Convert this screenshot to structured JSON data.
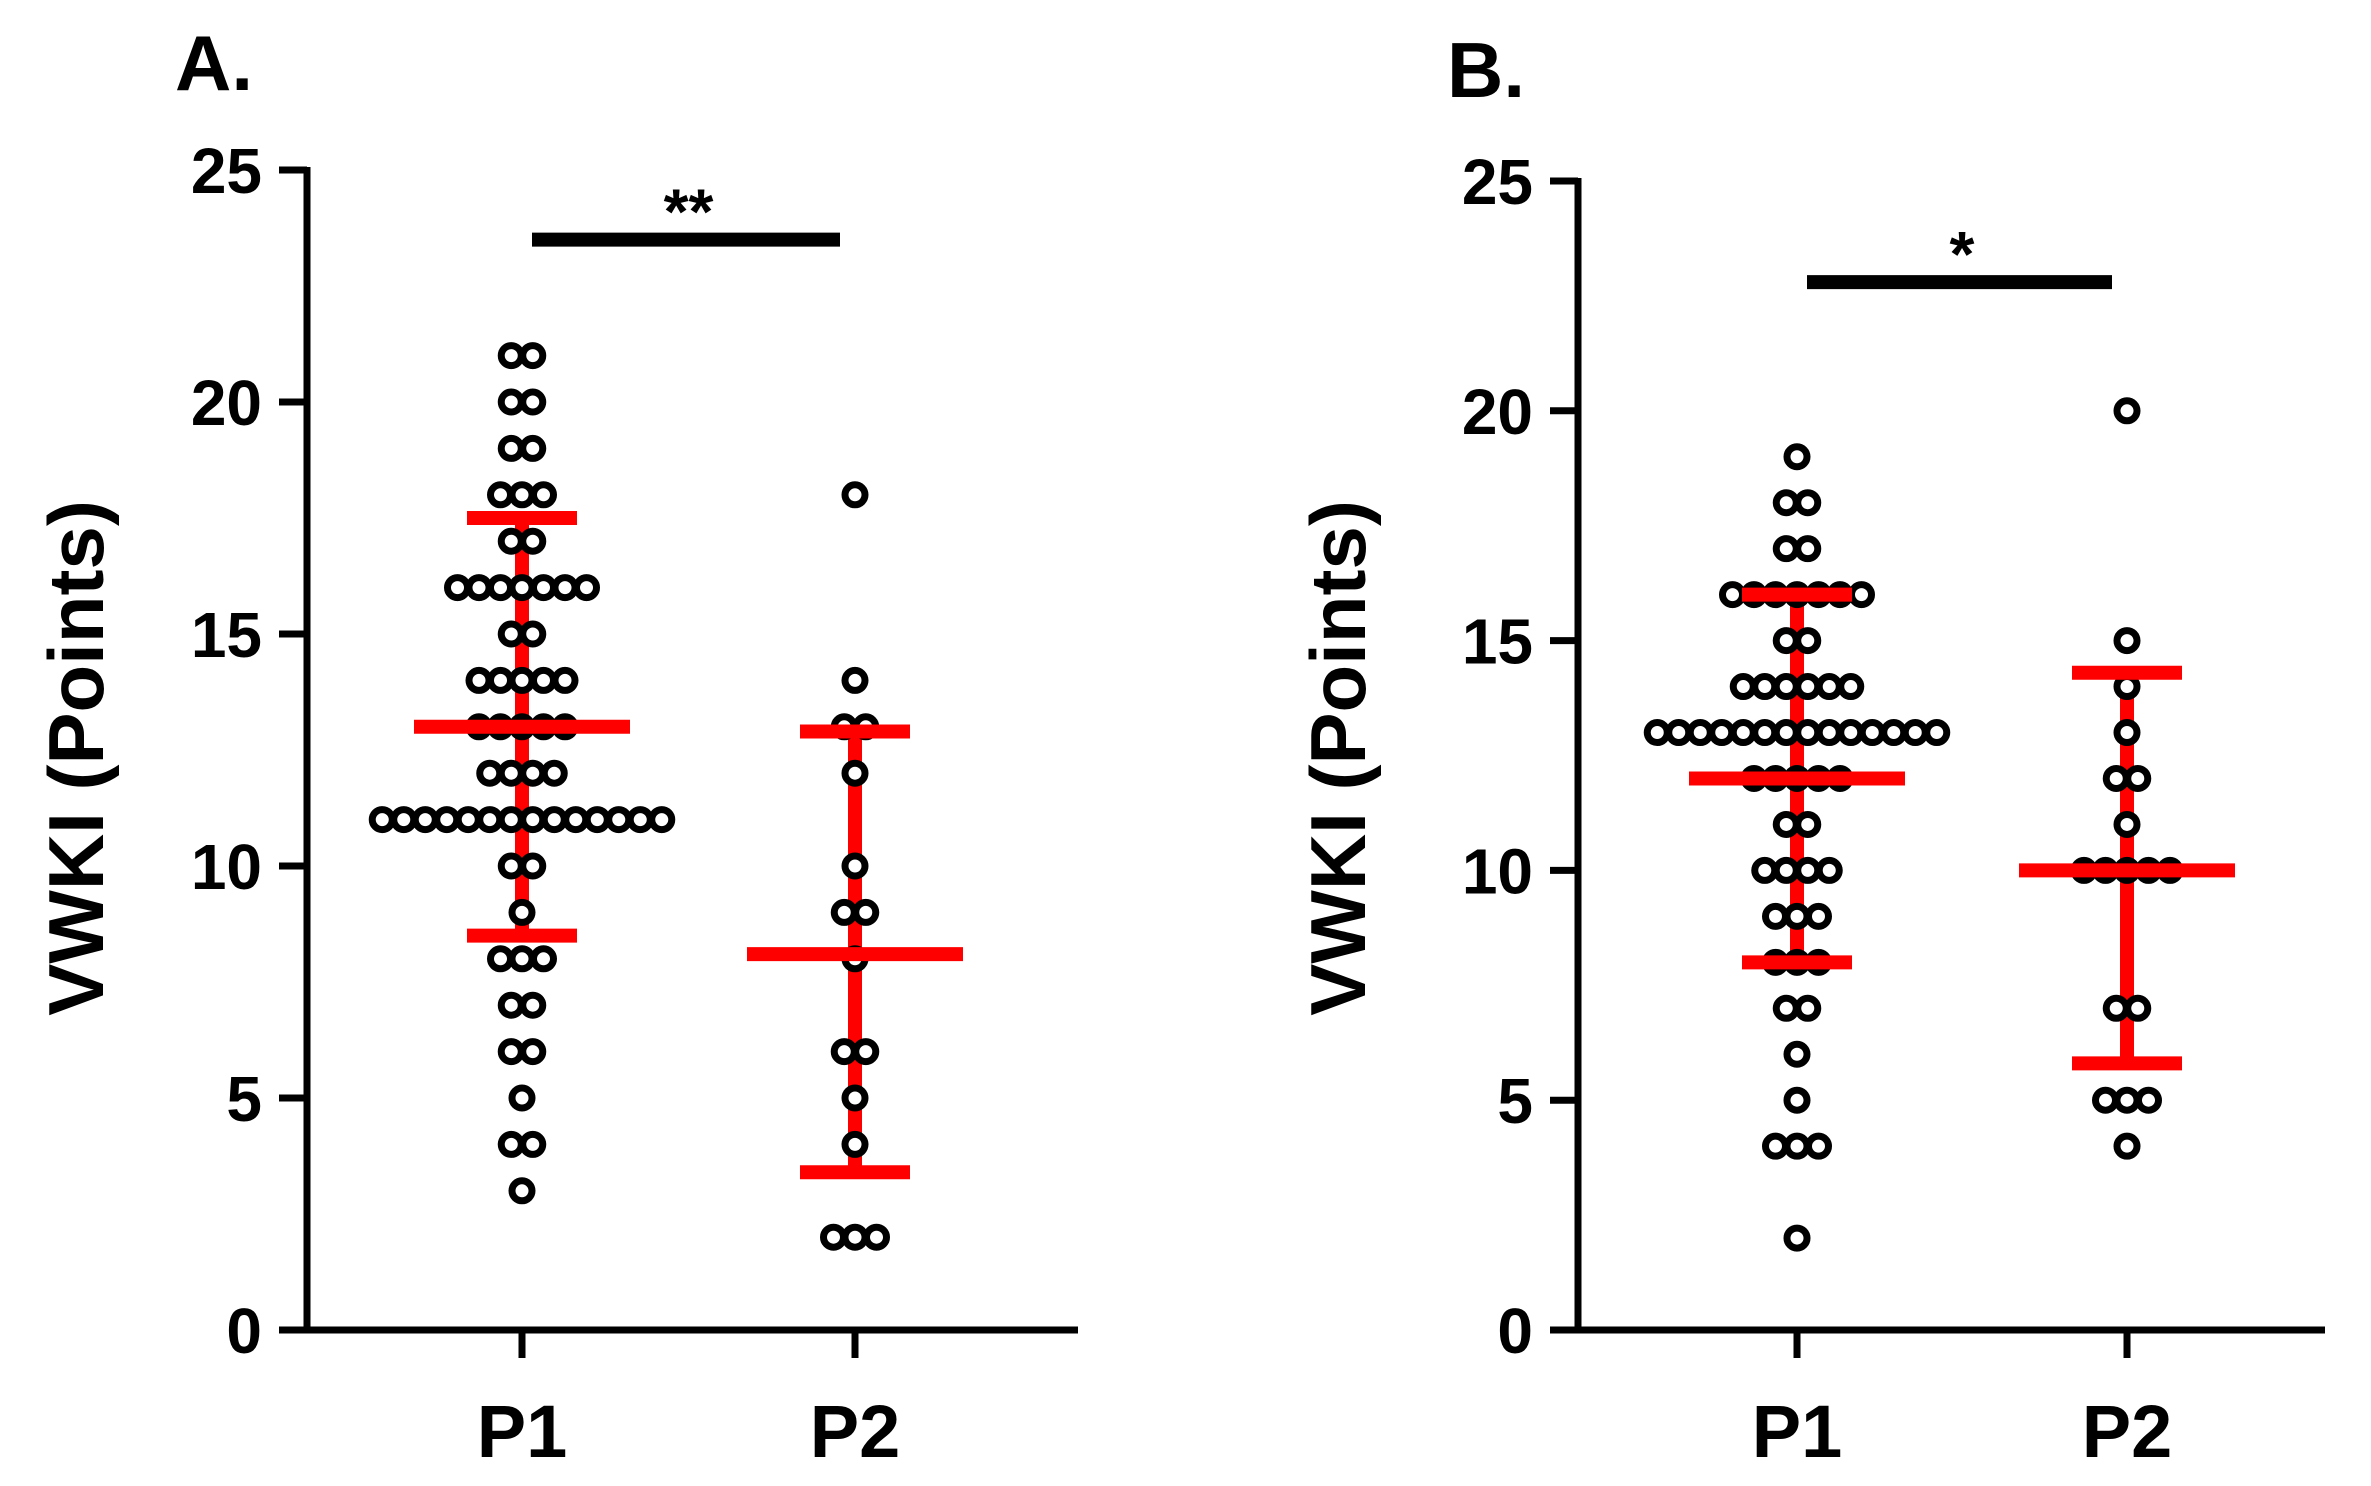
{
  "chart_data": [
    {
      "type": "scatter",
      "panel_label": "A.",
      "ylabel": "VWKI (Points)",
      "ylim": [
        0,
        25
      ],
      "yticks": [
        "0",
        "5",
        "10",
        "15",
        "20",
        "25"
      ],
      "categories": [
        "P1",
        "P2"
      ],
      "groups": [
        {
          "name": "P1",
          "values": [
            3,
            4,
            4,
            5,
            6,
            6,
            7,
            7,
            8,
            8,
            8,
            9,
            10,
            10,
            11,
            11,
            11,
            11,
            11,
            11,
            11,
            11,
            11,
            11,
            11,
            11,
            11,
            11,
            12,
            12,
            12,
            12,
            13,
            13,
            13,
            13,
            13,
            14,
            14,
            14,
            14,
            14,
            15,
            15,
            16,
            16,
            16,
            16,
            16,
            16,
            16,
            17,
            17,
            18,
            18,
            18,
            19,
            19,
            20,
            20,
            21,
            21
          ],
          "mean": 13,
          "sd_low": 8.5,
          "sd_high": 17.5
        },
        {
          "name": "P2",
          "values": [
            2,
            2,
            2,
            4,
            5,
            6,
            6,
            8,
            9,
            9,
            10,
            12,
            13,
            13,
            14,
            18
          ],
          "mean": 8.1,
          "sd_low": 3.4,
          "sd_high": 12.9
        }
      ],
      "significance": {
        "label": "**",
        "y": 23.5,
        "from": "P1",
        "to": "P2"
      },
      "colors": {
        "error": "#ff0000",
        "points": "#000000"
      }
    },
    {
      "type": "scatter",
      "panel_label": "B.",
      "ylabel": "VWKI (Points)",
      "ylim": [
        0,
        25
      ],
      "yticks": [
        "0",
        "5",
        "10",
        "15",
        "20",
        "25"
      ],
      "categories": [
        "P1",
        "P2"
      ],
      "groups": [
        {
          "name": "P1",
          "values": [
            2,
            4,
            4,
            4,
            5,
            6,
            7,
            7,
            8,
            8,
            8,
            9,
            9,
            9,
            10,
            10,
            10,
            10,
            11,
            11,
            12,
            12,
            12,
            12,
            12,
            13,
            13,
            13,
            13,
            13,
            13,
            13,
            13,
            13,
            13,
            13,
            13,
            13,
            13,
            14,
            14,
            14,
            14,
            14,
            14,
            15,
            15,
            16,
            16,
            16,
            16,
            16,
            16,
            16,
            17,
            17,
            18,
            18,
            19
          ],
          "mean": 12,
          "sd_low": 8,
          "sd_high": 16
        },
        {
          "name": "P2",
          "values": [
            4,
            5,
            5,
            5,
            7,
            7,
            10,
            10,
            10,
            10,
            10,
            11,
            12,
            12,
            13,
            14,
            15,
            20
          ],
          "mean": 10,
          "sd_low": 5.8,
          "sd_high": 14.3
        }
      ],
      "significance": {
        "label": "*",
        "y": 22.8,
        "from": "P1",
        "to": "P2"
      },
      "colors": {
        "error": "#ff0000",
        "points": "#000000"
      }
    }
  ]
}
